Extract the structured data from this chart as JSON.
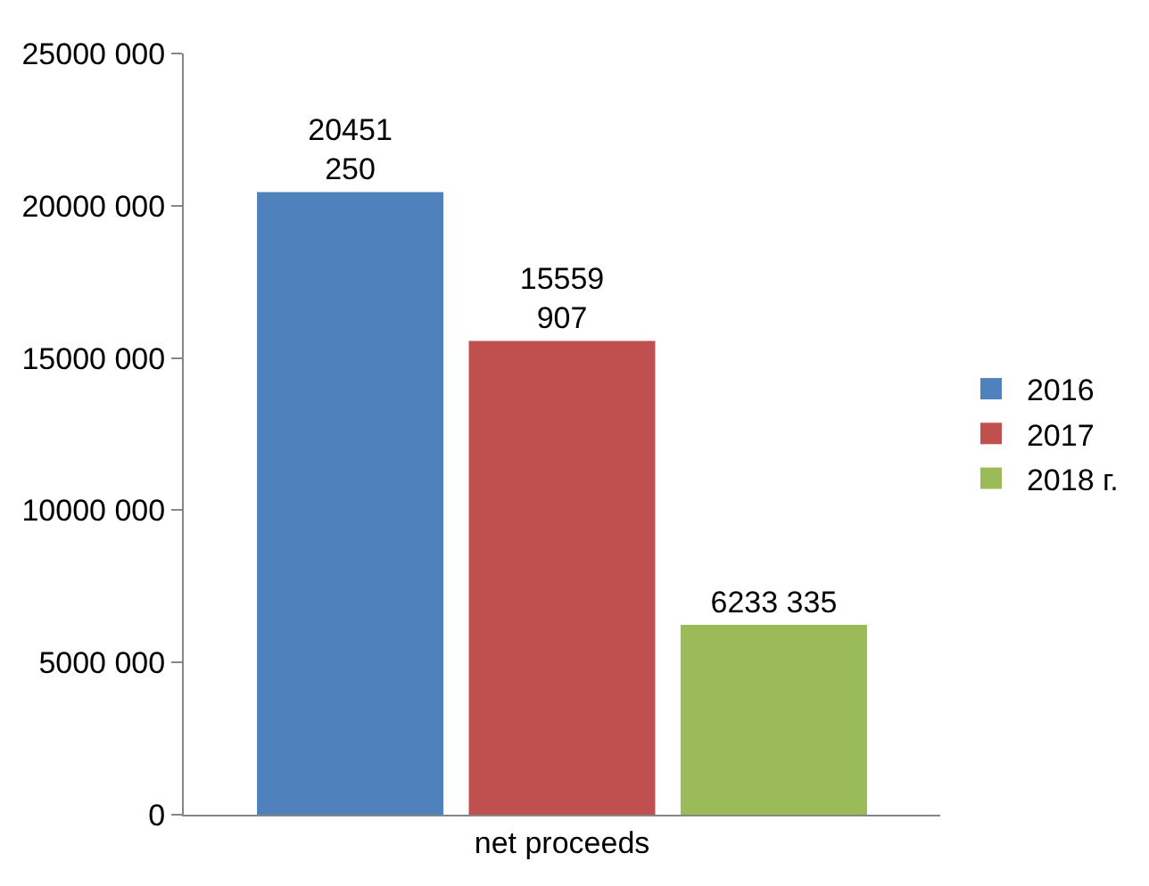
{
  "chart_data": {
    "type": "bar",
    "categories": [
      "net proceeds"
    ],
    "series": [
      {
        "name": "2016",
        "color": "#4f81bd",
        "values": [
          20451250
        ],
        "value_labels": [
          "20451\n250"
        ]
      },
      {
        "name": "2017",
        "color": "#c0504d",
        "values": [
          15559907
        ],
        "value_labels": [
          "15559\n907"
        ]
      },
      {
        "name": "2018 г.",
        "color": "#9bbb59",
        "values": [
          6233335
        ],
        "value_labels": [
          "6233 335"
        ]
      }
    ],
    "ylim": [
      0,
      25000000
    ],
    "yticks": [
      0,
      {
        "value": 5000000,
        "label": "5000 000"
      },
      {
        "value": 10000000,
        "label": "10000 000"
      },
      {
        "value": 15000000,
        "label": "15000 000"
      },
      {
        "value": 20000000,
        "label": "20000 000"
      },
      {
        "value": 25000000,
        "label": "25000 000"
      }
    ],
    "grid": false,
    "legend": "right"
  }
}
